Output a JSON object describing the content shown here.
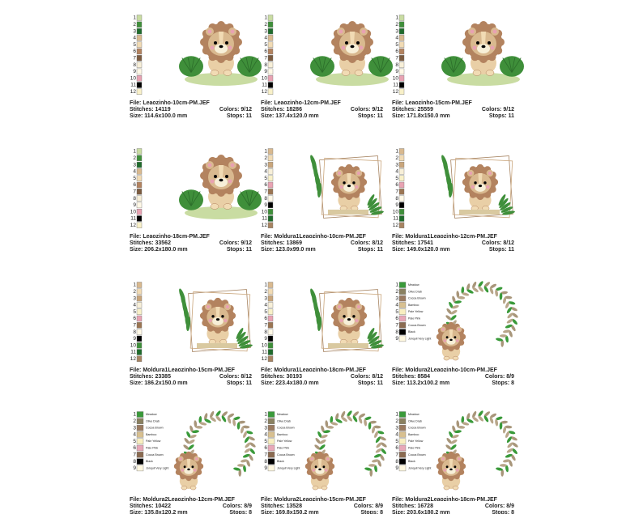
{
  "cards": [
    {
      "file": "File: Leaozinho-10cm-PM.JEF",
      "stitches": "Stitches: 14119",
      "colors": "Colors: 9/12",
      "size": "Size: 114.6x100.0 mm",
      "stops": "Stops: 11",
      "swatches": [
        {
          "label": "1",
          "color": "#c9dca2"
        },
        {
          "label": "2",
          "color": "#3f8f3a"
        },
        {
          "label": "3",
          "color": "#1f6b2c"
        },
        {
          "label": "4",
          "color": "#d9b98f"
        },
        {
          "label": "5",
          "color": "#f1dbb4"
        },
        {
          "label": "6",
          "color": "#b3835f"
        },
        {
          "label": "7",
          "color": "#7b5b40"
        },
        {
          "label": "8",
          "color": "#f7efd8"
        },
        {
          "label": "9",
          "color": "#fff8e6"
        },
        {
          "label": "10",
          "color": "#e8a2b2"
        },
        {
          "label": "11",
          "color": "#000000"
        },
        {
          "label": "12",
          "color": "#f8f0c8"
        }
      ]
    },
    {
      "file": "File: Leaozinho-12cm-PM.JEF",
      "stitches": "Stitches: 18286",
      "colors": "Colors: 9/12",
      "size": "Size: 137.4x120.0 mm",
      "stops": "Stops: 11",
      "swatches": [
        {
          "label": "1",
          "color": "#c9dca2"
        },
        {
          "label": "2",
          "color": "#3f8f3a"
        },
        {
          "label": "3",
          "color": "#1f6b2c"
        },
        {
          "label": "4",
          "color": "#d9b98f"
        },
        {
          "label": "5",
          "color": "#f1dbb4"
        },
        {
          "label": "6",
          "color": "#b3835f"
        },
        {
          "label": "7",
          "color": "#7b5b40"
        },
        {
          "label": "8",
          "color": "#f7efd8"
        },
        {
          "label": "9",
          "color": "#fff8e6"
        },
        {
          "label": "10",
          "color": "#e8a2b2"
        },
        {
          "label": "11",
          "color": "#000000"
        },
        {
          "label": "12",
          "color": "#f8f0c8"
        }
      ]
    },
    {
      "file": "File: Leaozinho-15cm-PM.JEF",
      "stitches": "Stitches: 25559",
      "colors": "Colors: 9/12",
      "size": "Size: 171.8x150.0 mm",
      "stops": "Stops: 11",
      "swatches": [
        {
          "label": "1",
          "color": "#c9dca2"
        },
        {
          "label": "2",
          "color": "#3f8f3a"
        },
        {
          "label": "3",
          "color": "#1f6b2c"
        },
        {
          "label": "4",
          "color": "#d9b98f"
        },
        {
          "label": "5",
          "color": "#f1dbb4"
        },
        {
          "label": "6",
          "color": "#b3835f"
        },
        {
          "label": "7",
          "color": "#7b5b40"
        },
        {
          "label": "8",
          "color": "#f7efd8"
        },
        {
          "label": "9",
          "color": "#fff8e6"
        },
        {
          "label": "10",
          "color": "#e8a2b2"
        },
        {
          "label": "11",
          "color": "#000000"
        },
        {
          "label": "12",
          "color": "#f8f0c8"
        }
      ]
    },
    {
      "file": "File: Leaozinho-18cm-PM.JEF",
      "stitches": "Stitches: 33562",
      "colors": "Colors: 9/12",
      "size": "Size: 206.2x180.0 mm",
      "stops": "Stops: 11",
      "swatches": [
        {
          "label": "1",
          "color": "#c9dca2"
        },
        {
          "label": "2",
          "color": "#3f8f3a"
        },
        {
          "label": "3",
          "color": "#1f6b2c"
        },
        {
          "label": "4",
          "color": "#d9b98f"
        },
        {
          "label": "5",
          "color": "#f1dbb4"
        },
        {
          "label": "6",
          "color": "#b3835f"
        },
        {
          "label": "7",
          "color": "#7b5b40"
        },
        {
          "label": "8",
          "color": "#f7efd8"
        },
        {
          "label": "9",
          "color": "#fff8e6"
        },
        {
          "label": "10",
          "color": "#e8a2b2"
        },
        {
          "label": "11",
          "color": "#000000"
        },
        {
          "label": "12",
          "color": "#f8f0c8"
        }
      ]
    },
    {
      "file": "File: Moldura1Leaozinho-10cm-PM.JEF",
      "stitches": "Stitches: 13869",
      "colors": "Colors: 8/12",
      "size": "Size: 123.0x99.0 mm",
      "stops": "Stops: 11",
      "swatches": [
        {
          "label": "1",
          "color": "#d9b98f"
        },
        {
          "label": "2",
          "color": "#f1dbb4"
        },
        {
          "label": "3",
          "color": "#c9a57b"
        },
        {
          "label": "4",
          "color": "#f7efd8"
        },
        {
          "label": "5",
          "color": "#f8f0c8"
        },
        {
          "label": "6",
          "color": "#e8a2b2"
        },
        {
          "label": "7",
          "color": "#9b7552"
        },
        {
          "label": "8",
          "color": "#fff8e6"
        },
        {
          "label": "9",
          "color": "#000000"
        },
        {
          "label": "10",
          "color": "#3f8f3a"
        },
        {
          "label": "11",
          "color": "#1f6b2c"
        },
        {
          "label": "12",
          "color": "#a78462"
        }
      ]
    },
    {
      "file": "File: Moldura1Leaozinho-12cm-PM.JEF",
      "stitches": "Stitches: 17541",
      "colors": "Colors: 8/12",
      "size": "Size: 149.0x120.0 mm",
      "stops": "Stops: 11",
      "swatches": [
        {
          "label": "1",
          "color": "#d9b98f"
        },
        {
          "label": "2",
          "color": "#f1dbb4"
        },
        {
          "label": "3",
          "color": "#c9a57b"
        },
        {
          "label": "4",
          "color": "#f7efd8"
        },
        {
          "label": "5",
          "color": "#f8f0c8"
        },
        {
          "label": "6",
          "color": "#e8a2b2"
        },
        {
          "label": "7",
          "color": "#9b7552"
        },
        {
          "label": "8",
          "color": "#fff8e6"
        },
        {
          "label": "9",
          "color": "#000000"
        },
        {
          "label": "10",
          "color": "#3f8f3a"
        },
        {
          "label": "11",
          "color": "#1f6b2c"
        },
        {
          "label": "12",
          "color": "#a78462"
        }
      ]
    },
    {
      "file": "File: Moldura1Leaozinho-15cm-PM.JEF",
      "stitches": "Stitches: 23385",
      "colors": "Colors: 8/12",
      "size": "Size: 186.2x150.0 mm",
      "stops": "Stops: 11",
      "swatches": [
        {
          "label": "1",
          "color": "#d9b98f"
        },
        {
          "label": "2",
          "color": "#f1dbb4"
        },
        {
          "label": "3",
          "color": "#c9a57b"
        },
        {
          "label": "4",
          "color": "#f7efd8"
        },
        {
          "label": "5",
          "color": "#f8f0c8"
        },
        {
          "label": "6",
          "color": "#e8a2b2"
        },
        {
          "label": "7",
          "color": "#9b7552"
        },
        {
          "label": "8",
          "color": "#fff8e6"
        },
        {
          "label": "9",
          "color": "#000000"
        },
        {
          "label": "10",
          "color": "#3f8f3a"
        },
        {
          "label": "11",
          "color": "#1f6b2c"
        },
        {
          "label": "12",
          "color": "#a78462"
        }
      ]
    },
    {
      "file": "File: Moldura1Leaozinho-18cm-PM.JEF",
      "stitches": "Stitches: 30193",
      "colors": "Colors: 8/12",
      "size": "Size: 223.4x180.0 mm",
      "stops": "Stops: 11",
      "swatches": [
        {
          "label": "1",
          "color": "#d9b98f"
        },
        {
          "label": "2",
          "color": "#f1dbb4"
        },
        {
          "label": "3",
          "color": "#c9a57b"
        },
        {
          "label": "4",
          "color": "#f7efd8"
        },
        {
          "label": "5",
          "color": "#f8f0c8"
        },
        {
          "label": "6",
          "color": "#e8a2b2"
        },
        {
          "label": "7",
          "color": "#9b7552"
        },
        {
          "label": "8",
          "color": "#fff8e6"
        },
        {
          "label": "9",
          "color": "#000000"
        },
        {
          "label": "10",
          "color": "#3f8f3a"
        },
        {
          "label": "11",
          "color": "#1f6b2c"
        },
        {
          "label": "12",
          "color": "#a78462"
        }
      ]
    },
    {
      "file": "File: Moldura2Leaozinho-10cm-PM.JEF",
      "stitches": "Stitches: 8584",
      "colors": "Colors: 8/9",
      "size": "Size: 113.2x100.2 mm",
      "stops": "Stops: 8",
      "swatches": [
        {
          "label": "1",
          "name": "Meadow",
          "color": "#3a9a3a"
        },
        {
          "label": "2",
          "name": "Olive Drab",
          "color": "#8a8060"
        },
        {
          "label": "3",
          "name": "Cocoa Brown",
          "color": "#9a7a60"
        },
        {
          "label": "4",
          "name": "Bamboo",
          "color": "#d8c090"
        },
        {
          "label": "5",
          "name": "Pale Yellow",
          "color": "#f8eec0"
        },
        {
          "label": "6",
          "name": "Pale Pink",
          "color": "#e8a8b8"
        },
        {
          "label": "7",
          "name": "Cocoa Brown",
          "color": "#8a6a50"
        },
        {
          "label": "8",
          "name": "Black",
          "color": "#000000"
        },
        {
          "label": "9",
          "name": "Jonquil Very Light",
          "color": "#fff8e0"
        }
      ]
    },
    {
      "file": "File: Moldura2Leaozinho-12cm-PM.JEF",
      "stitches": "Stitches: 10422",
      "colors": "Colors: 8/9",
      "size": "Size: 135.8x120.2 mm",
      "stops": "Stops: 8",
      "swatches": [
        {
          "label": "1",
          "name": "Meadow",
          "color": "#3a9a3a"
        },
        {
          "label": "2",
          "name": "Olive Drab",
          "color": "#8a8060"
        },
        {
          "label": "3",
          "name": "Cocoa Brown",
          "color": "#9a7a60"
        },
        {
          "label": "4",
          "name": "Bamboo",
          "color": "#d8c090"
        },
        {
          "label": "5",
          "name": "Pale Yellow",
          "color": "#f8eec0"
        },
        {
          "label": "6",
          "name": "Pale Pink",
          "color": "#e8a8b8"
        },
        {
          "label": "7",
          "name": "Cocoa Brown",
          "color": "#8a6a50"
        },
        {
          "label": "8",
          "name": "Black",
          "color": "#000000"
        },
        {
          "label": "9",
          "name": "Jonquil Very Light",
          "color": "#fff8e0"
        }
      ]
    },
    {
      "file": "File: Moldura2Leaozinho-15cm-PM.JEF",
      "stitches": "Stitches: 13528",
      "colors": "Colors: 8/9",
      "size": "Size: 169.8x150.2 mm",
      "stops": "Stops: 8",
      "swatches": [
        {
          "label": "1",
          "name": "Meadow",
          "color": "#3a9a3a"
        },
        {
          "label": "2",
          "name": "Olive Drab",
          "color": "#8a8060"
        },
        {
          "label": "3",
          "name": "Cocoa Brown",
          "color": "#9a7a60"
        },
        {
          "label": "4",
          "name": "Bamboo",
          "color": "#d8c090"
        },
        {
          "label": "5",
          "name": "Pale Yellow",
          "color": "#f8eec0"
        },
        {
          "label": "6",
          "name": "Pale Pink",
          "color": "#e8a8b8"
        },
        {
          "label": "7",
          "name": "Cocoa Brown",
          "color": "#8a6a50"
        },
        {
          "label": "8",
          "name": "Black",
          "color": "#000000"
        },
        {
          "label": "9",
          "name": "Jonquil Very Light",
          "color": "#fff8e0"
        }
      ]
    },
    {
      "file": "File: Moldura2Leaozinho-18cm-PM.JEF",
      "stitches": "Stitches: 16728",
      "colors": "Colors: 8/9",
      "size": "Size: 203.6x180.2 mm",
      "stops": "Stops: 8",
      "swatches": [
        {
          "label": "1",
          "name": "Meadow",
          "color": "#3a9a3a"
        },
        {
          "label": "2",
          "name": "Olive Drab",
          "color": "#8a8060"
        },
        {
          "label": "3",
          "name": "Cocoa Brown",
          "color": "#9a7a60"
        },
        {
          "label": "4",
          "name": "Bamboo",
          "color": "#d8c090"
        },
        {
          "label": "5",
          "name": "Pale Yellow",
          "color": "#f8eec0"
        },
        {
          "label": "6",
          "name": "Pale Pink",
          "color": "#e8a8b8"
        },
        {
          "label": "7",
          "name": "Cocoa Brown",
          "color": "#8a6a50"
        },
        {
          "label": "8",
          "name": "Black",
          "color": "#000000"
        },
        {
          "label": "9",
          "name": "Jonquil Very Light",
          "color": "#fff8e0"
        }
      ]
    }
  ]
}
